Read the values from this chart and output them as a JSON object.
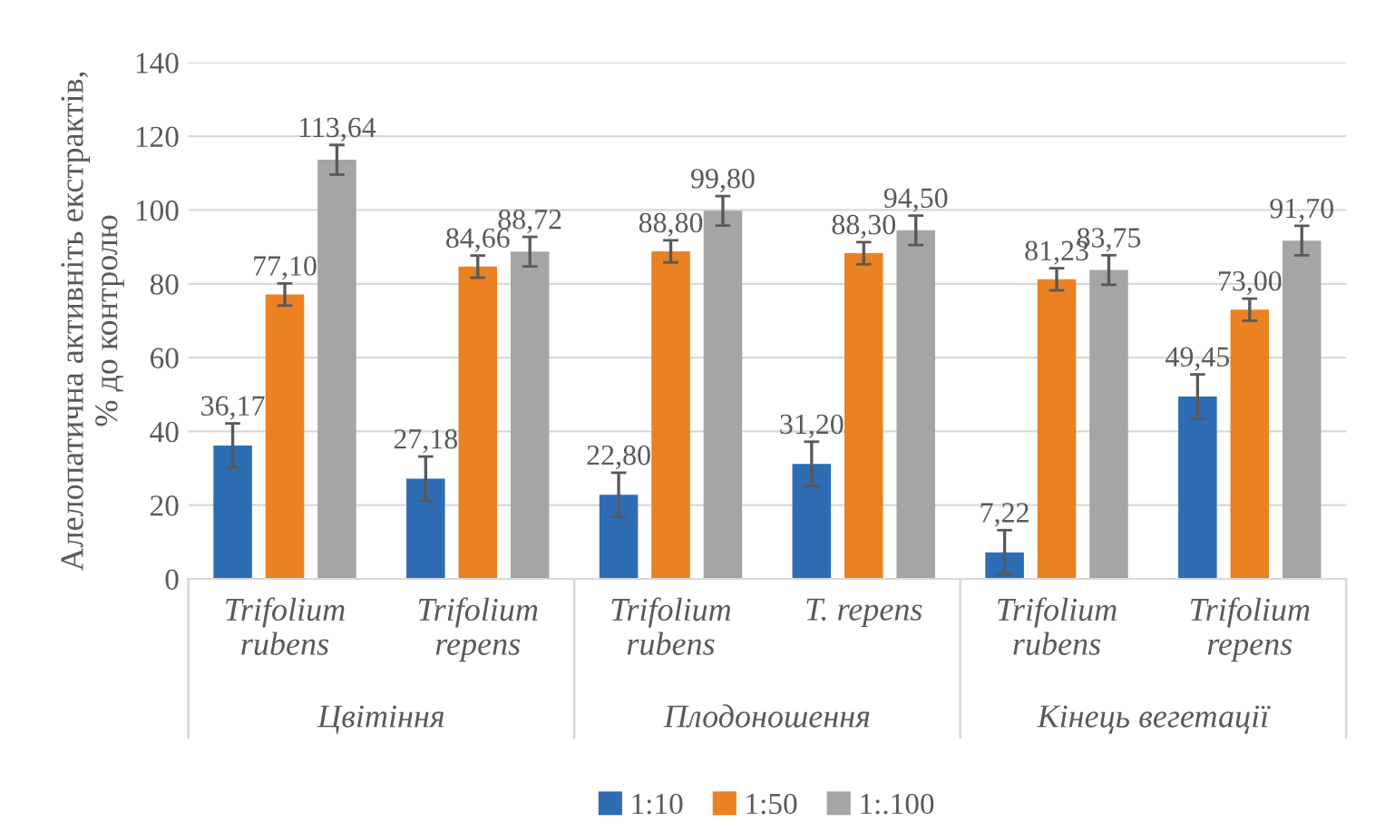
{
  "chart_data": {
    "type": "bar",
    "ylabel": "Алелопатична активніть екстрактів,\n% до контролю",
    "categories": [
      "Trifolium\nrubens",
      "Trifolium\nrepens",
      "Trifolium\nrubens",
      "T. repens",
      "Trifolium\nrubens",
      "Trifolium\nrepens"
    ],
    "annotations": [
      "Цвітіння",
      "Плодоношення",
      "Кінець вегетації"
    ],
    "series": [
      {
        "name": "1:10",
        "color": "#2e6db4",
        "values": [
          36.17,
          27.18,
          22.8,
          31.2,
          7.22,
          49.45
        ],
        "errors": [
          6,
          6,
          6,
          6,
          6,
          6
        ],
        "value_labels": [
          "36,17",
          "27,18",
          "22,80",
          "31,20",
          "7,22",
          "49,45"
        ]
      },
      {
        "name": "1:50",
        "color": "#ea8122",
        "values": [
          77.1,
          84.66,
          88.8,
          88.3,
          81.23,
          73.0
        ],
        "errors": [
          3,
          3,
          3,
          3,
          3,
          3
        ],
        "value_labels": [
          "77,10",
          "84,66",
          "88,80",
          "88,30",
          "81,23",
          "73,00"
        ]
      },
      {
        "name": "1:.100",
        "color": "#a5a5a5",
        "values": [
          113.64,
          88.72,
          99.8,
          94.5,
          83.75,
          91.7
        ],
        "errors": [
          4,
          4,
          4,
          4,
          4,
          4
        ],
        "value_labels": [
          "113,64",
          "88,72",
          "99,80",
          "94,50",
          "83,75",
          "91,70"
        ]
      }
    ],
    "ylim": [
      0,
      140
    ],
    "yticks": [
      0,
      20,
      40,
      60,
      80,
      100,
      120,
      140
    ],
    "grid": "y",
    "legend": "bottom"
  }
}
